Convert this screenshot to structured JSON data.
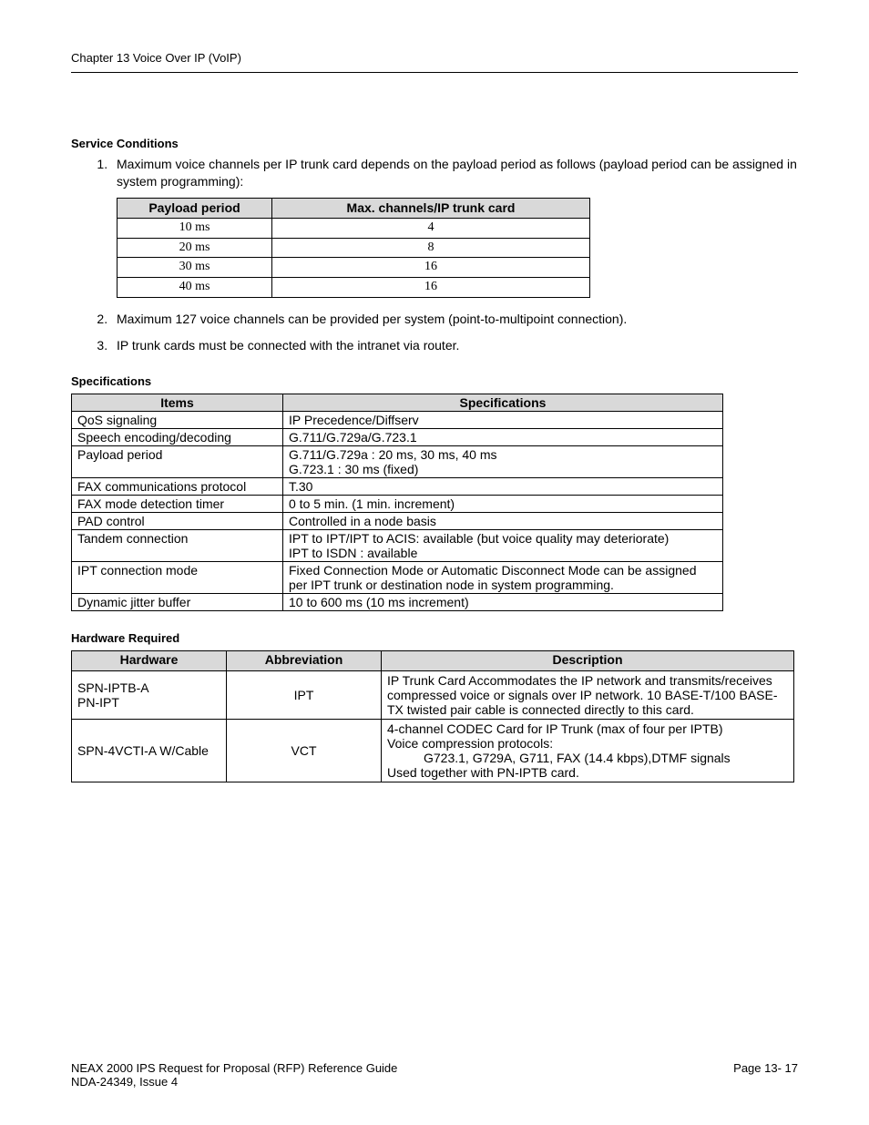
{
  "header": {
    "chapter": "Chapter 13 Voice Over IP (VoIP)"
  },
  "section_conditions": {
    "title": "Service Conditions",
    "items": [
      "Maximum voice channels per IP trunk card depends on the payload period as follows (payload period can be assigned in system programming):",
      "Maximum 127 voice channels can be provided per system (point-to-multipoint connection).",
      "IP trunk cards must be connected with the intranet via router."
    ]
  },
  "table1": {
    "header": [
      "Payload period",
      "Max. channels/IP trunk card"
    ],
    "rows": [
      [
        "10 ms",
        "4"
      ],
      [
        "20 ms",
        "8"
      ],
      [
        "30 ms",
        "16"
      ],
      [
        "40 ms",
        "16"
      ]
    ]
  },
  "section_specs": {
    "title": "Specifications",
    "header": [
      "Items",
      "Specifications"
    ],
    "rows": [
      [
        "QoS signaling",
        "IP Precedence/Diffserv"
      ],
      [
        "Speech encoding/decoding",
        "G.711/G.729a/G.723.1"
      ],
      [
        "Payload period",
        "G.711/G.729a : 20 ms, 30 ms, 40 ms\nG.723.1 : 30 ms (fixed)"
      ],
      [
        "FAX communications protocol",
        "T.30"
      ],
      [
        "FAX mode detection timer",
        "0 to 5 min. (1 min. increment)"
      ],
      [
        "PAD control",
        "Controlled in a node basis"
      ],
      [
        "Tandem connection",
        "IPT to IPT/IPT to ACIS: available (but voice quality may deteriorate)\nIPT to ISDN : available"
      ],
      [
        "IPT connection mode",
        "Fixed Connection Mode or Automatic Disconnect Mode can be assigned per IPT trunk or destination node in system programming."
      ],
      [
        "Dynamic jitter buffer",
        "10 to 600 ms (10 ms increment)"
      ]
    ]
  },
  "section_hw": {
    "title": "Hardware Required",
    "header": [
      "Hardware",
      "Abbreviation",
      "Description"
    ],
    "rows": [
      {
        "hw": "SPN-IPTB-A\nPN-IPT",
        "abbr": "IPT",
        "desc": "IP Trunk Card Accommodates the IP network and transmits/receives compressed voice or signals over IP network.  10 BASE-T/100 BASE-TX twisted pair cable is connected directly to this card."
      },
      {
        "hw": "SPN-4VCTI-A W/Cable",
        "abbr": "VCT",
        "desc_line1": "4-channel CODEC Card for IP Trunk (max of four per IPTB)",
        "desc_line2": "Voice compression protocols:",
        "desc_line3": "G723.1, G729A, G711, FAX (14.4 kbps),DTMF signals",
        "desc_line4": "Used together with PN-IPTB card."
      }
    ]
  },
  "footer": {
    "left1": "NEAX 2000 IPS Request for Proposal (RFP) Reference Guide",
    "left2": "NDA-24349, Issue 4",
    "right": "Page 13- 17"
  }
}
